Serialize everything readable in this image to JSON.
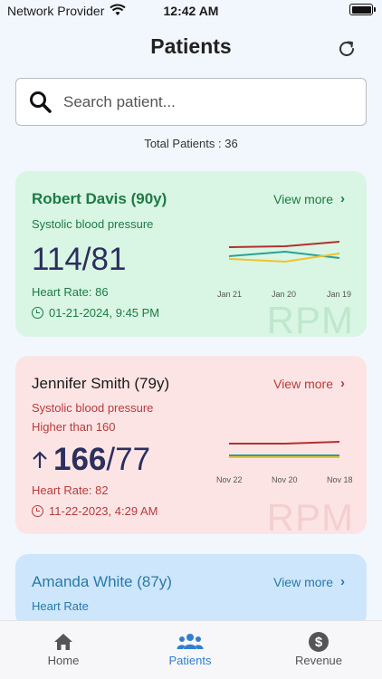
{
  "status_bar": {
    "carrier": "Network Provider",
    "time": "12:42 AM"
  },
  "header": {
    "title": "Patients"
  },
  "search": {
    "placeholder": "Search patient..."
  },
  "total_patients_text": "Total Patients : 36",
  "patients": [
    {
      "name": "Robert Davis (90y)",
      "view_more": "View more",
      "metric": "Systolic blood pressure",
      "systolic": "114",
      "diastolic": "81",
      "reading_prefix": "114/81",
      "heart_rate": "Heart Rate: 86",
      "timestamp": "01-21-2024, 9:45 PM",
      "watermark": "RPM",
      "chart_dates": [
        "Jan 21",
        "Jan 20",
        "Jan 19"
      ],
      "color_theme": "#d8f6e3"
    },
    {
      "name": "Jennifer Smith (79y)",
      "view_more": "View more",
      "metric": "Systolic blood pressure",
      "alert": "Higher than 160",
      "systolic": "166",
      "diastolic": "/77",
      "heart_rate": "Heart Rate: 82",
      "timestamp": "11-22-2023, 4:29 AM",
      "watermark": "RPM",
      "chart_dates": [
        "Nov 22",
        "Nov 20",
        "Nov 18"
      ],
      "color_theme": "#fde4e4"
    },
    {
      "name": "Amanda White (87y)",
      "view_more": "View more",
      "metric": "Heart Rate",
      "color_theme": "#cde6fb"
    }
  ],
  "tabs": [
    {
      "label": "Home",
      "icon": "home-icon"
    },
    {
      "label": "Patients",
      "icon": "patients-icon",
      "active": true
    },
    {
      "label": "Revenue",
      "icon": "dollar-icon"
    }
  ],
  "colors": {
    "active_tab": "#2f7fd1",
    "systolic_line": "#b33030",
    "diastolic_line": "#2aa198",
    "hr_line": "#f2c12e"
  }
}
